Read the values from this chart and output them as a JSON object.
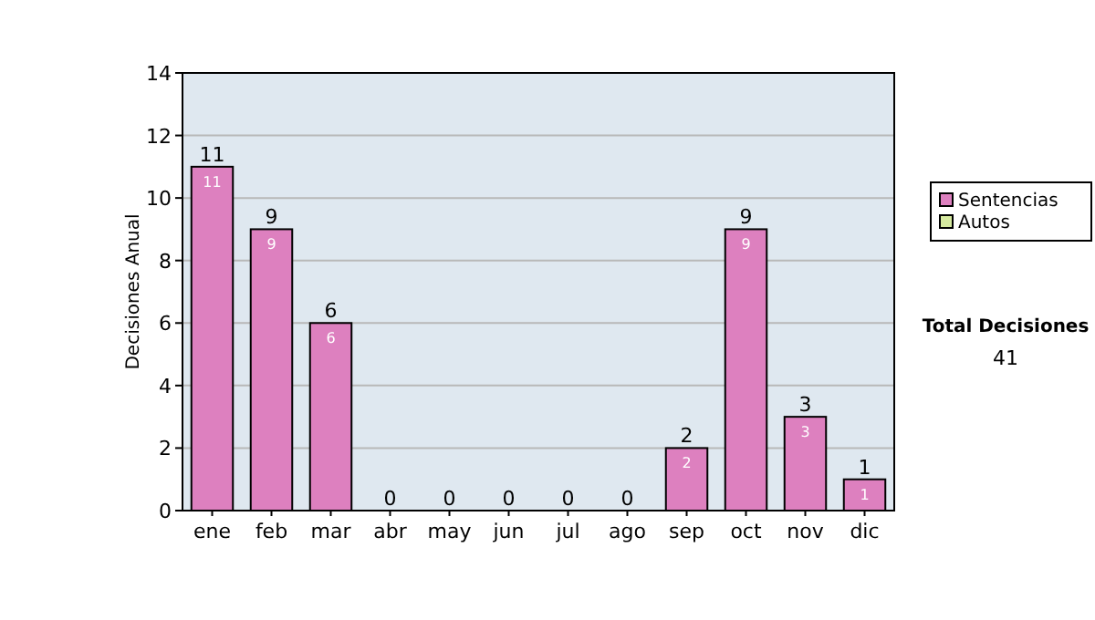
{
  "chart_data": {
    "type": "bar",
    "ylabel": "Decisiones Anual",
    "categories": [
      "ene",
      "feb",
      "mar",
      "abr",
      "may",
      "jun",
      "jul",
      "ago",
      "sep",
      "oct",
      "nov",
      "dic"
    ],
    "series": [
      {
        "name": "Sentencias",
        "color": "#dd80bf",
        "values": [
          11,
          9,
          6,
          0,
          0,
          0,
          0,
          0,
          2,
          9,
          3,
          1
        ],
        "value_labels": [
          "11",
          "9",
          "6",
          null,
          null,
          null,
          null,
          null,
          "2",
          "9",
          "3",
          "1"
        ]
      },
      {
        "name": "Autos",
        "color": "#d6eaa0",
        "values": [
          0,
          0,
          0,
          0,
          0,
          0,
          0,
          0,
          0,
          0,
          0,
          0
        ]
      }
    ],
    "stacked": true,
    "totals": [
      "11",
      "9",
      "6",
      "0",
      "0",
      "0",
      "0",
      "0",
      "2",
      "9",
      "3",
      "1"
    ],
    "ylim": [
      0,
      14
    ],
    "yticks": [
      0,
      2,
      4,
      6,
      8,
      10,
      12,
      14
    ],
    "grid": "y",
    "legend": "right",
    "annotations": [
      "Total Decisiones",
      "41"
    ]
  }
}
